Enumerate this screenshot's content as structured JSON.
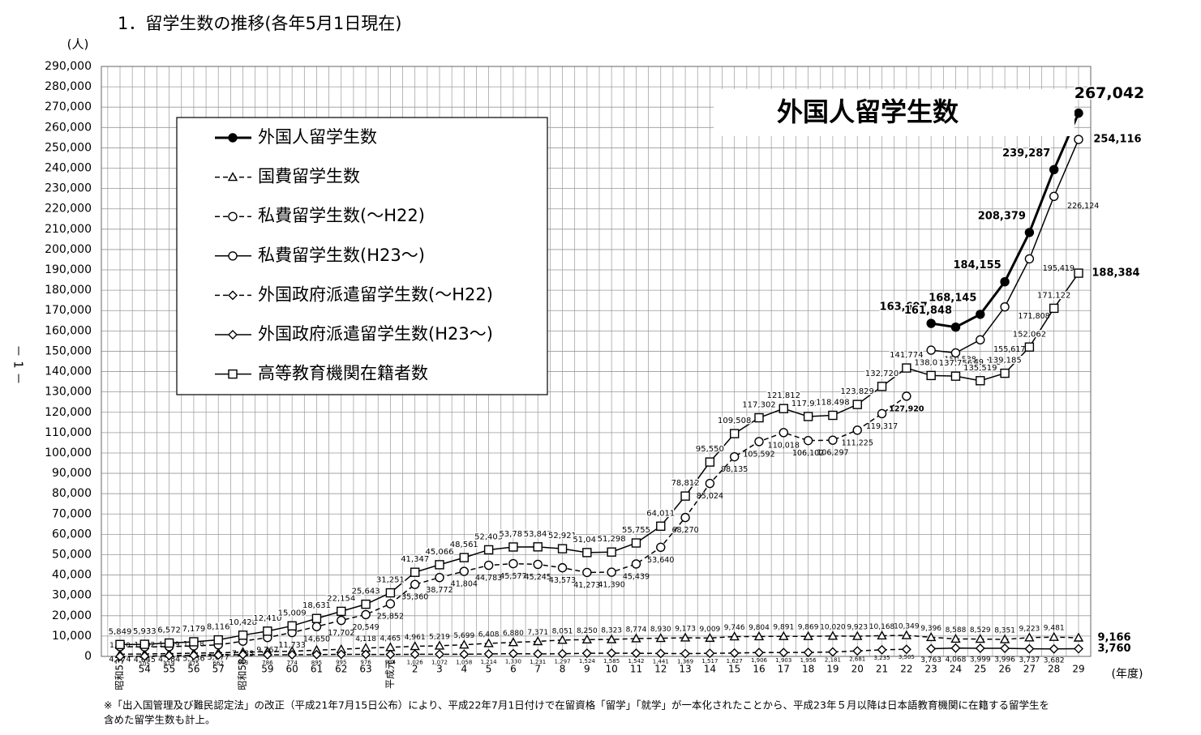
{
  "chart_data": {
    "type": "line",
    "title": "1．留学生数の推移(各年5月1日現在)",
    "y_label": "(人)",
    "x_label": "(年度)",
    "inner_title": "外国人留学生数",
    "page_number": "－ 1 －",
    "footnote": [
      "※「出入国管理及び難民認定法」の改正（平成21年7月15日公布）により、平成22年7月1日付けで在留資格「留学」「就学」が一本化されたことから、平成23年５月以降は日本語教育機関に在籍する留学生を",
      "含めた留学生数も計上。"
    ],
    "categories": [
      "昭和53",
      "54",
      "55",
      "56",
      "57",
      "昭和58",
      "59",
      "60",
      "61",
      "62",
      "63",
      "平成元",
      "2",
      "3",
      "4",
      "5",
      "6",
      "7",
      "8",
      "9",
      "10",
      "11",
      "12",
      "13",
      "14",
      "15",
      "16",
      "17",
      "18",
      "19",
      "20",
      "21",
      "22",
      "23",
      "24",
      "25",
      "26",
      "27",
      "28",
      "29"
    ],
    "ylim": [
      0,
      290000
    ],
    "yticks": [
      0,
      {
        "value": 10000,
        "label": "10,000"
      },
      {
        "value": 20000,
        "label": "20,000"
      },
      {
        "value": 30000,
        "label": "30,000"
      },
      {
        "value": 40000,
        "label": "40,000"
      },
      {
        "value": 50000,
        "label": "50,000"
      },
      {
        "value": 60000,
        "label": "60,000"
      },
      {
        "value": 70000,
        "label": "70,000"
      },
      {
        "value": 80000,
        "label": "80,000"
      },
      {
        "value": 90000,
        "label": "90,000"
      },
      {
        "value": 100000,
        "label": "100,000"
      },
      {
        "value": 110000,
        "label": "110,000"
      },
      {
        "value": 120000,
        "label": "120,000"
      },
      {
        "value": 130000,
        "label": "130,000"
      },
      {
        "value": 140000,
        "label": "140,000"
      },
      {
        "value": 150000,
        "label": "150,000"
      },
      {
        "value": 160000,
        "label": "160,000"
      },
      {
        "value": 170000,
        "label": "170,000"
      },
      {
        "value": 180000,
        "label": "180,000"
      },
      {
        "value": 190000,
        "label": "190,000"
      },
      {
        "value": 200000,
        "label": "200,000"
      },
      {
        "value": 210000,
        "label": "210,000"
      },
      {
        "value": 220000,
        "label": "220,000"
      },
      {
        "value": 230000,
        "label": "230,000"
      },
      {
        "value": 240000,
        "label": "240,000"
      },
      {
        "value": 250000,
        "label": "250,000"
      },
      {
        "value": 260000,
        "label": "260,000"
      },
      {
        "value": 270000,
        "label": "270,000"
      },
      {
        "value": 280000,
        "label": "280,000"
      },
      {
        "value": 290000,
        "label": "290,000"
      }
    ],
    "grid": true,
    "series": [
      {
        "name": "外国人留学生数",
        "color": "#000000",
        "dashed": false,
        "marker": "circle-filled",
        "values": [
          null,
          null,
          null,
          null,
          null,
          null,
          null,
          null,
          null,
          null,
          null,
          null,
          null,
          null,
          null,
          null,
          null,
          null,
          null,
          null,
          null,
          null,
          null,
          null,
          null,
          null,
          null,
          null,
          null,
          null,
          null,
          null,
          null,
          163697,
          161848,
          168145,
          184155,
          208379,
          239287,
          267042
        ],
        "value_labels": [
          null,
          null,
          null,
          null,
          null,
          null,
          null,
          null,
          null,
          null,
          null,
          null,
          null,
          null,
          null,
          null,
          null,
          null,
          null,
          null,
          null,
          null,
          null,
          null,
          null,
          null,
          null,
          null,
          null,
          null,
          null,
          null,
          null,
          "163,697",
          "161,848",
          "168,145",
          "184,155",
          "208,379",
          "239,287",
          "267,042"
        ]
      },
      {
        "name": "国費留学生数",
        "color": "#000000",
        "dashed": true,
        "marker": "triangle",
        "values": [
          1070,
          1182,
          1369,
          1578,
          1777,
          2082,
          2357,
          2502,
          3086,
          3457,
          4118,
          4465,
          4961,
          5219,
          5699,
          6408,
          6880,
          7371,
          8051,
          8250,
          8323,
          8774,
          8930,
          9173,
          9009,
          9746,
          9804,
          9891,
          9869,
          10020,
          9923,
          10168,
          10349,
          9396,
          8588,
          8529,
          8351,
          9223,
          9481,
          9166
        ],
        "value_labels": [
          "1,070",
          "1,182",
          "1,369",
          "1,578",
          null,
          null,
          null,
          null,
          null,
          null,
          "4,118",
          "4,465",
          "4,961",
          "5,219",
          "5,699",
          "6,408",
          "6,880",
          "7,371",
          "8,051",
          "8,250",
          "8,323",
          "8,774",
          "8,930",
          "9,173",
          "9,009",
          "9,746",
          "9,804",
          "9,891",
          "9,869",
          "10,020",
          "9,923",
          "10,168",
          "10,349",
          "9,396",
          "8,588",
          "8,529",
          "8,351",
          "9,223",
          "9,481",
          "9,166"
        ]
      },
      {
        "name": "私費留学生数(～H22)",
        "color": "#000000",
        "dashed": true,
        "marker": "circle",
        "values": [
          4774,
          4645,
          4784,
          5136,
          5677,
          7483,
          9267,
          11733,
          14650,
          17702,
          20549,
          25852,
          35360,
          38772,
          41804,
          44783,
          45577,
          45245,
          43573,
          41273,
          41390,
          45439,
          53640,
          68270,
          85024,
          98135,
          105592,
          110018,
          106102,
          106297,
          111225,
          119317,
          127920,
          null,
          null,
          null,
          null,
          null,
          null,
          null
        ],
        "value_labels": [
          "4,774",
          "4,645",
          "4,784",
          "5,136",
          "5,677",
          "7,483",
          "9,267",
          "11,733",
          "14,650",
          "17,702",
          "20,549",
          "25,852",
          "35,360",
          "38,772",
          "41,804",
          "44,783",
          "45,577",
          "45,245",
          "43,573",
          "41,273",
          "41,390",
          "45,439",
          "53,640",
          "68,270",
          "85,024",
          "98,135",
          "105,592",
          "110,018",
          "106,102",
          "106,297",
          "111,225",
          "119,317",
          "127,920",
          null,
          null,
          null,
          null,
          null,
          null,
          null
        ]
      },
      {
        "name": "私費留学生数(H23～)",
        "color": "#000000",
        "dashed": false,
        "marker": "circle",
        "values": [
          null,
          null,
          null,
          null,
          null,
          null,
          null,
          null,
          null,
          null,
          null,
          null,
          null,
          null,
          null,
          null,
          null,
          null,
          null,
          null,
          null,
          null,
          null,
          null,
          null,
          null,
          null,
          null,
          null,
          null,
          null,
          null,
          null,
          150538,
          149192,
          155617,
          171808,
          195419,
          226124,
          254116
        ],
        "value_labels": [
          null,
          null,
          null,
          null,
          null,
          null,
          null,
          null,
          null,
          null,
          null,
          null,
          null,
          null,
          null,
          null,
          null,
          null,
          null,
          null,
          null,
          null,
          null,
          null,
          null,
          null,
          null,
          null,
          null,
          null,
          null,
          null,
          null,
          "150,538",
          "149,192",
          "155,617",
          "171,808",
          "195,419",
          "226,124",
          "254,116"
        ]
      },
      {
        "name": "外国政府派遣留学生数(～H22)",
        "color": "#000000",
        "dashed": true,
        "marker": "diamond",
        "values": [
          0,
          105,
          419,
          475,
          662,
          863,
          786,
          774,
          895,
          995,
          976,
          934,
          1026,
          1072,
          1058,
          1214,
          1330,
          1231,
          1297,
          1524,
          1585,
          1542,
          1441,
          1369,
          1517,
          1627,
          1906,
          1903,
          1956,
          2181,
          2681,
          3235,
          3505,
          null,
          null,
          null,
          null,
          null,
          null,
          null
        ],
        "value_labels": [
          null,
          "105",
          "419",
          "475",
          "662",
          "863",
          "786",
          "774",
          "895",
          "995",
          "976",
          "934",
          "1,026",
          "1,072",
          "1,058",
          "1,214",
          "1,330",
          "1,231",
          "1,297",
          "1,524",
          "1,585",
          "1,542",
          "1,441",
          "1,369",
          "1,517",
          "1,627",
          "1,906",
          "1,903",
          "1,956",
          "2,181",
          "2,681",
          "3,235",
          "3,505",
          null,
          null,
          null,
          null,
          null,
          null,
          null
        ]
      },
      {
        "name": "外国政府派遣留学生数(H23～)",
        "color": "#000000",
        "dashed": false,
        "marker": "diamond",
        "values": [
          null,
          null,
          null,
          null,
          null,
          null,
          null,
          null,
          null,
          null,
          null,
          null,
          null,
          null,
          null,
          null,
          null,
          null,
          null,
          null,
          null,
          null,
          null,
          null,
          null,
          null,
          null,
          null,
          null,
          null,
          null,
          null,
          null,
          3763,
          4068,
          3999,
          3996,
          3737,
          3682,
          3760
        ],
        "value_labels": [
          null,
          null,
          null,
          null,
          null,
          null,
          null,
          null,
          null,
          null,
          null,
          null,
          null,
          null,
          null,
          null,
          null,
          null,
          null,
          null,
          null,
          null,
          null,
          null,
          null,
          null,
          null,
          null,
          null,
          null,
          null,
          null,
          null,
          "3,763",
          "4,068",
          "3,999",
          "3,996",
          "3,737",
          "3,682",
          "3,760"
        ]
      },
      {
        "name": "高等教育機関在籍者数",
        "color": "#000000",
        "dashed": false,
        "marker": "square",
        "values": [
          5849,
          5933,
          6572,
          7179,
          8116,
          10428,
          12410,
          15009,
          18631,
          22154,
          25643,
          31251,
          41347,
          45066,
          48561,
          52405,
          53787,
          53847,
          52921,
          51047,
          51298,
          55755,
          64011,
          78812,
          95550,
          109508,
          117302,
          121812,
          117927,
          118498,
          123829,
          132720,
          141774,
          138075,
          137756,
          135519,
          139185,
          152062,
          171122,
          188384
        ],
        "value_labels": [
          "5,849",
          "5,933",
          "6,572",
          "7,179",
          "8,116",
          "10,428",
          "12,410",
          "15,009",
          "18,631",
          "22,154",
          "25,643",
          "31,251",
          "41,347",
          "45,066",
          "48,561",
          "52,405",
          "53,787",
          "53,847",
          "52,921",
          "51,047",
          "51,298",
          "55,755",
          "64,011",
          "78,812",
          "95,550",
          "109,508",
          "117,302",
          "121,812",
          "117,927",
          "118,498",
          "123,829",
          "132,720",
          "141,774",
          "138,075",
          "137,756",
          "135,519",
          "139,185",
          "152,062",
          "171,122",
          "188,384"
        ]
      }
    ]
  }
}
